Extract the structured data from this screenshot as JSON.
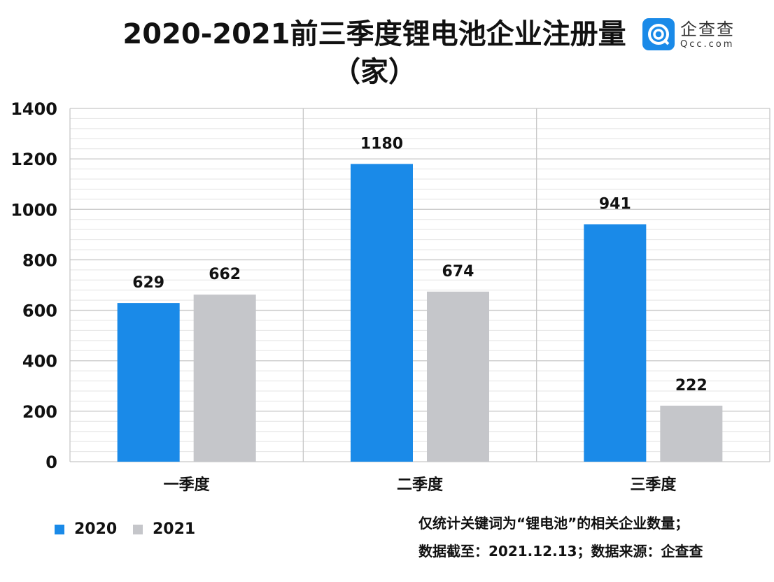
{
  "chart_data": {
    "type": "bar",
    "title": "2020-2021前三季度锂电池企业注册量（家）",
    "categories": [
      "一季度",
      "二季度",
      "三季度"
    ],
    "series": [
      {
        "name": "2020",
        "values": [
          629,
          1180,
          941
        ],
        "color": "#1a8ae8"
      },
      {
        "name": "2021",
        "values": [
          662,
          674,
          222
        ],
        "color": "#c5c6ca"
      }
    ],
    "ylim": [
      0,
      1400
    ],
    "yticks": [
      0,
      200,
      400,
      600,
      800,
      1000,
      1200,
      1400
    ],
    "grid": true,
    "legend": "bottom-left",
    "data_labels": true
  },
  "logo": {
    "cn": "企查查",
    "en": "Qcc.com"
  },
  "notes": [
    "仅统计关键词为“锂电池”的相关企业数量；",
    "数据截至：2021.12.13；数据来源：企查查"
  ]
}
